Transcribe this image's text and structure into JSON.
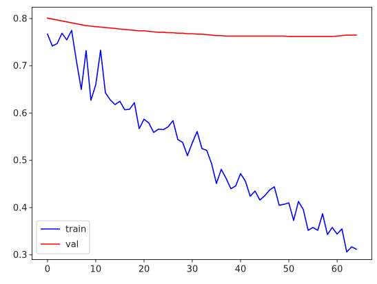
{
  "chart_data": {
    "type": "line",
    "title": "",
    "xlabel": "",
    "ylabel": "",
    "xlim": [
      -3.2,
      67.2
    ],
    "ylim": [
      0.29,
      0.824
    ],
    "xticks": [
      0,
      10,
      20,
      30,
      40,
      50,
      60
    ],
    "yticks": [
      0.3,
      0.4,
      0.5,
      0.6,
      0.7,
      0.8
    ],
    "xtick_labels": [
      "0",
      "10",
      "20",
      "30",
      "40",
      "50",
      "60"
    ],
    "ytick_labels": [
      "0.3",
      "0.4",
      "0.5",
      "0.6",
      "0.7",
      "0.8"
    ],
    "grid": false,
    "legend": {
      "placement": "lower-left"
    },
    "series": [
      {
        "name": "train",
        "color": "#0000ff",
        "x": [
          0,
          1,
          2,
          3,
          4,
          5,
          6,
          7,
          8,
          9,
          10,
          11,
          12,
          13,
          14,
          15,
          16,
          17,
          18,
          19,
          20,
          21,
          22,
          23,
          24,
          25,
          26,
          27,
          28,
          29,
          30,
          31,
          32,
          33,
          34,
          35,
          36,
          37,
          38,
          39,
          40,
          41,
          42,
          43,
          44,
          45,
          46,
          47,
          48,
          49,
          50,
          51,
          52,
          53,
          54,
          55,
          56,
          57,
          58,
          59,
          60,
          61,
          62,
          63,
          64
        ],
        "values": [
          0.767,
          0.742,
          0.747,
          0.769,
          0.755,
          0.775,
          0.71,
          0.65,
          0.732,
          0.627,
          0.66,
          0.733,
          0.643,
          0.628,
          0.618,
          0.625,
          0.607,
          0.608,
          0.622,
          0.567,
          0.587,
          0.579,
          0.559,
          0.566,
          0.565,
          0.571,
          0.584,
          0.544,
          0.538,
          0.51,
          0.537,
          0.561,
          0.525,
          0.521,
          0.493,
          0.451,
          0.481,
          0.462,
          0.44,
          0.446,
          0.472,
          0.456,
          0.424,
          0.435,
          0.416,
          0.425,
          0.437,
          0.444,
          0.405,
          0.407,
          0.41,
          0.373,
          0.413,
          0.396,
          0.352,
          0.358,
          0.352,
          0.387,
          0.343,
          0.358,
          0.344,
          0.355,
          0.306,
          0.317,
          0.312
        ]
      },
      {
        "name": "val",
        "color": "#ff0000",
        "x": [
          0,
          1,
          2,
          3,
          4,
          5,
          6,
          7,
          8,
          9,
          10,
          11,
          12,
          13,
          14,
          15,
          16,
          17,
          18,
          19,
          20,
          21,
          22,
          23,
          24,
          25,
          26,
          27,
          28,
          29,
          30,
          31,
          32,
          33,
          34,
          35,
          36,
          37,
          38,
          39,
          40,
          41,
          42,
          43,
          44,
          45,
          46,
          47,
          48,
          49,
          50,
          51,
          52,
          53,
          54,
          55,
          56,
          57,
          58,
          59,
          60,
          61,
          62,
          63,
          64
        ],
        "values": [
          0.801,
          0.799,
          0.797,
          0.795,
          0.793,
          0.791,
          0.789,
          0.787,
          0.785,
          0.784,
          0.783,
          0.782,
          0.781,
          0.78,
          0.779,
          0.778,
          0.777,
          0.776,
          0.775,
          0.774,
          0.774,
          0.773,
          0.772,
          0.771,
          0.771,
          0.77,
          0.77,
          0.769,
          0.769,
          0.768,
          0.768,
          0.767,
          0.767,
          0.766,
          0.765,
          0.764,
          0.764,
          0.763,
          0.763,
          0.763,
          0.763,
          0.763,
          0.763,
          0.763,
          0.763,
          0.763,
          0.763,
          0.763,
          0.763,
          0.763,
          0.762,
          0.762,
          0.762,
          0.762,
          0.762,
          0.762,
          0.762,
          0.762,
          0.762,
          0.762,
          0.763,
          0.764,
          0.765,
          0.765,
          0.765
        ]
      }
    ]
  }
}
